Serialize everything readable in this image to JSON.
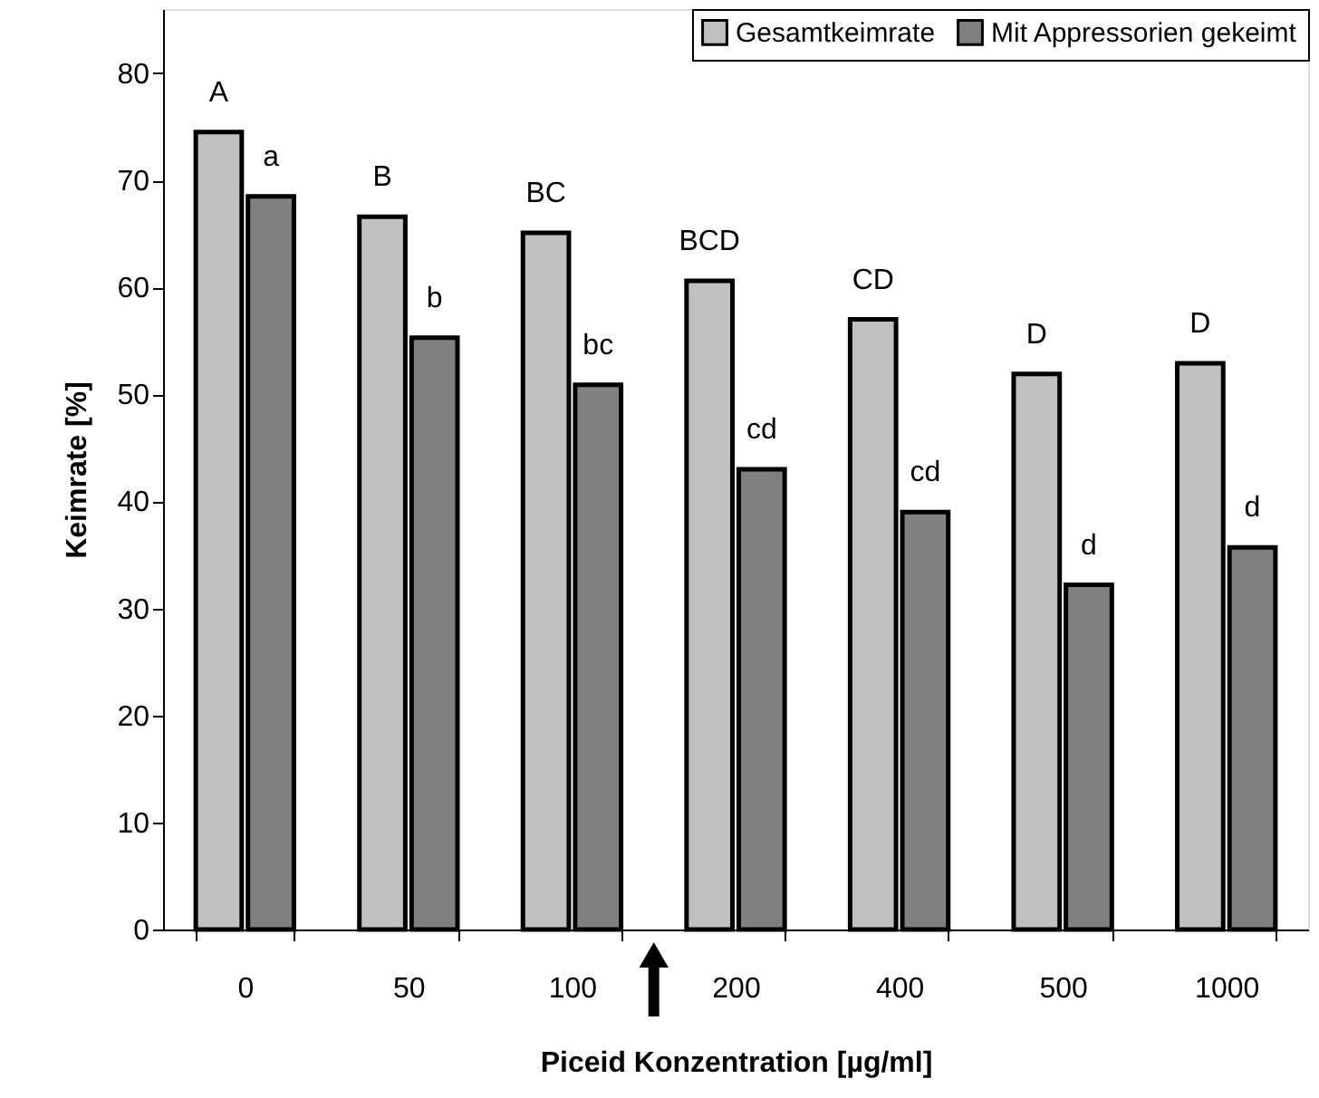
{
  "chart_data": {
    "type": "bar",
    "xlabel": "Piceid Konzentration [µg/ml]",
    "ylabel": "Keimrate [%]",
    "categories": [
      "0",
      "50",
      "100",
      "200",
      "400",
      "500",
      "1000"
    ],
    "series": [
      {
        "name": "Gesamtkeimrate",
        "color": "#c0c0c0",
        "values": [
          74.5,
          66.6,
          65.1,
          60.6,
          57.0,
          51.9,
          52.9
        ]
      },
      {
        "name": "Mit Appressorien gekeimt",
        "color": "#808080",
        "values": [
          68.5,
          55.3,
          50.9,
          43.0,
          39.0,
          32.2,
          35.7
        ]
      }
    ],
    "ylim": [
      0,
      86
    ],
    "yticks": [
      0,
      10,
      20,
      30,
      40,
      50,
      60,
      70,
      80
    ],
    "grid": false,
    "legend": "top right",
    "annotations": [
      {
        "text": "A",
        "x": "0",
        "y": 74.5
      },
      {
        "text": "a",
        "x": "0",
        "y": 68.5
      },
      {
        "text": "B",
        "x": "50",
        "y": 66.6
      },
      {
        "text": "b",
        "x": "50",
        "y": 55.3
      },
      {
        "text": "BC",
        "x": "100",
        "y": 65.1
      },
      {
        "text": "bc",
        "x": "100",
        "y": 50.9
      },
      {
        "text": "BCD",
        "x": "200",
        "y": 60.6
      },
      {
        "text": "cd",
        "x": "200",
        "y": 43.0
      },
      {
        "text": "CD",
        "x": "400",
        "y": 57.0
      },
      {
        "text": "cd",
        "x": "400",
        "y": 39.0
      },
      {
        "text": "D",
        "x": "500",
        "y": 51.9
      },
      {
        "text": "d",
        "x": "500",
        "y": 32.2
      },
      {
        "text": "D",
        "x": "1000",
        "y": 52.9
      },
      {
        "text": "d",
        "x": "1000",
        "y": 35.7
      }
    ]
  }
}
